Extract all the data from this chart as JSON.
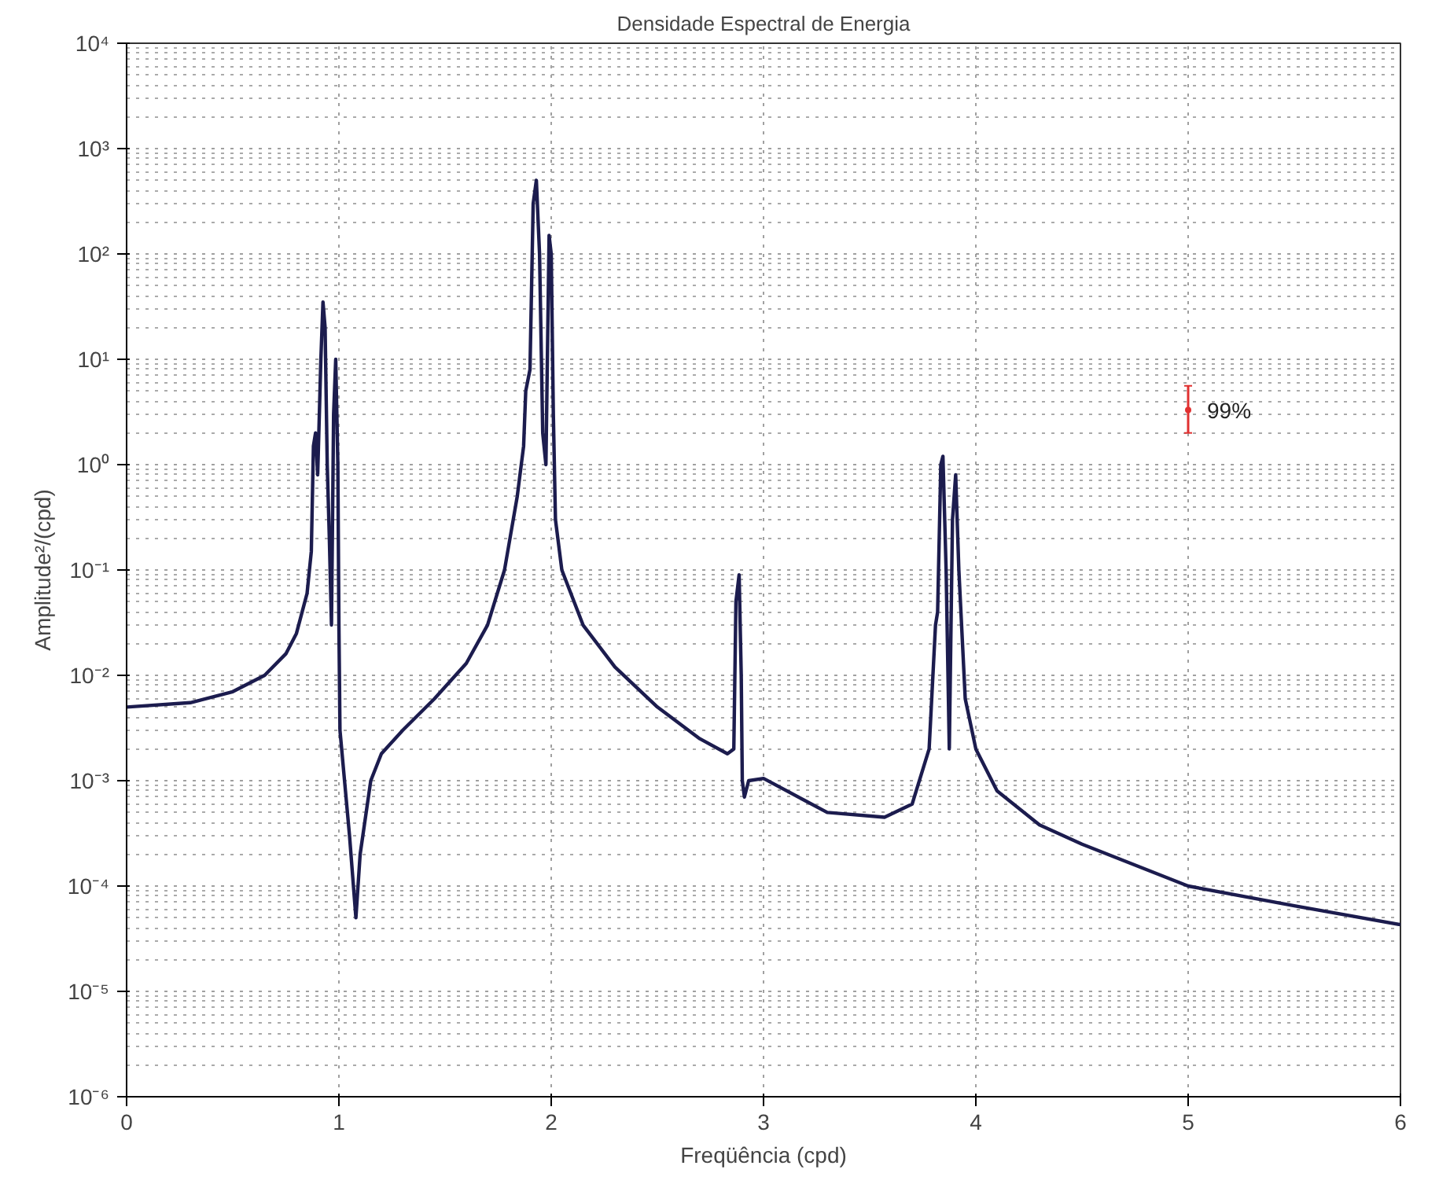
{
  "chart_data": {
    "type": "line",
    "title": "Densidade Espectral de Energia",
    "xlabel": "Freqüência (cpd)",
    "ylabel": "Amplitude²/(cpd)",
    "log": "y",
    "grid": true,
    "line_style": "solid",
    "xlim": [
      0,
      6
    ],
    "xticks": [
      0,
      1,
      2,
      3,
      4,
      5,
      6
    ],
    "ylim": [
      1e-06,
      10000
    ],
    "yticks": [
      {
        "value": 1e-06,
        "label": "10⁻⁶"
      },
      {
        "value": 1e-05,
        "label": "10⁻⁵"
      },
      {
        "value": 0.0001,
        "label": "10⁻⁴"
      },
      {
        "value": 0.001,
        "label": "10⁻³"
      },
      {
        "value": 0.01,
        "label": "10⁻²"
      },
      {
        "value": 0.1,
        "label": "10⁻¹"
      },
      {
        "value": 1,
        "label": "10⁰"
      },
      {
        "value": 10,
        "label": "10¹"
      },
      {
        "value": 100,
        "label": "10²"
      },
      {
        "value": 1000,
        "label": "10³"
      },
      {
        "value": 10000,
        "label": "10⁴"
      }
    ],
    "series": [
      {
        "color": "#1c1c4e",
        "x": [
          0,
          0.3,
          0.5,
          0.65,
          0.75,
          0.8,
          0.85,
          0.87,
          0.88,
          0.89,
          0.9,
          0.915,
          0.925,
          0.935,
          0.945,
          0.955,
          0.965,
          0.975,
          0.985,
          0.995,
          1.0,
          1.005,
          1.05,
          1.08,
          1.1,
          1.15,
          1.2,
          1.3,
          1.45,
          1.6,
          1.7,
          1.78,
          1.84,
          1.87,
          1.88,
          1.9,
          1.915,
          1.93,
          1.945,
          1.96,
          1.975,
          1.99,
          2.0,
          2.01,
          2.02,
          2.05,
          2.15,
          2.3,
          2.5,
          2.7,
          2.83,
          2.86,
          2.87,
          2.885,
          2.895,
          2.9,
          2.91,
          2.93,
          3.0,
          3.3,
          3.57,
          3.7,
          3.78,
          3.81,
          3.82,
          3.835,
          3.845,
          3.86,
          3.875,
          3.89,
          3.905,
          3.92,
          3.95,
          4.0,
          4.1,
          4.3,
          4.5,
          5.0,
          5.5,
          6.0
        ],
        "values": [
          0.005,
          0.0055,
          0.007,
          0.01,
          0.016,
          0.025,
          0.06,
          0.15,
          1.5,
          2,
          0.8,
          10,
          35,
          20,
          1,
          0.2,
          0.03,
          3,
          10,
          1,
          0.03,
          0.003,
          0.0003,
          5e-05,
          0.0002,
          0.001,
          0.0018,
          0.003,
          0.006,
          0.013,
          0.03,
          0.1,
          0.5,
          1.5,
          5,
          8,
          300,
          500,
          100,
          2,
          1,
          150,
          100,
          3,
          0.3,
          0.1,
          0.03,
          0.012,
          0.005,
          0.0025,
          0.0018,
          0.002,
          0.05,
          0.09,
          0.01,
          0.001,
          0.0007,
          0.001,
          0.00105,
          0.0005,
          0.00045,
          0.0006,
          0.002,
          0.03,
          0.04,
          1,
          1.2,
          0.1,
          0.002,
          0.3,
          0.8,
          0.1,
          0.006,
          0.002,
          0.0008,
          0.00038,
          0.00025,
          0.0001,
          6.5e-05,
          4.3e-05
        ]
      },
      {
        "type": "scatter",
        "color": "#e03030",
        "marker": "circle",
        "x": [
          5
        ],
        "values": [
          3.3
        ],
        "errors": [
          [
            2,
            5.6
          ]
        ]
      }
    ],
    "annotations": [
      {
        "text": "99%",
        "x": 5,
        "y": 3.3
      }
    ]
  }
}
